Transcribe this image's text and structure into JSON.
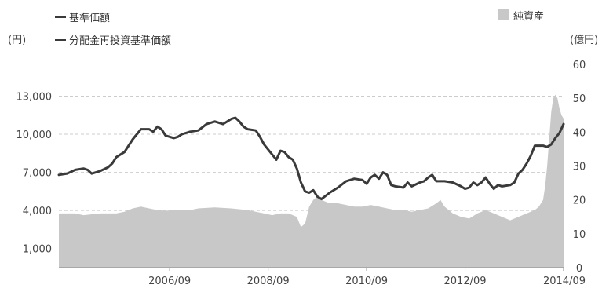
{
  "chart_data": {
    "type": "line+area",
    "legend": {
      "line1": "基準価額",
      "line2": "分配金再投資基準価額",
      "area": "純資産"
    },
    "left_axis": {
      "unit": "(円)",
      "ticks": [
        "1,000",
        "4,000",
        "7,000",
        "10,000",
        "13,000"
      ],
      "tick_values": [
        1000,
        4000,
        7000,
        10000,
        13000
      ],
      "range": [
        -500,
        15500
      ]
    },
    "right_axis": {
      "unit": "(億円)",
      "ticks": [
        "0",
        "10",
        "20",
        "30",
        "40",
        "50",
        "60"
      ],
      "tick_values": [
        0,
        10,
        20,
        30,
        40,
        50,
        60
      ],
      "range": [
        0,
        60
      ]
    },
    "x_axis": {
      "ticks": [
        "2006/09",
        "2008/09",
        "2010/09",
        "2012/09",
        "2014/09"
      ],
      "tick_t": [
        27,
        51,
        75,
        99,
        123
      ],
      "t_range": [
        0,
        123
      ],
      "t_unit": "months since 2004/06"
    },
    "grid": "dashed horizontal",
    "colors": {
      "line": "#3a3a3a",
      "area": "#c8c8c8"
    },
    "series": [
      {
        "name": "基準価額",
        "axis": "left",
        "points": [
          [
            0,
            6800
          ],
          [
            2,
            6900
          ],
          [
            4,
            7200
          ],
          [
            6,
            7300
          ],
          [
            7,
            7200
          ],
          [
            8,
            6900
          ],
          [
            10,
            7100
          ],
          [
            12,
            7400
          ],
          [
            13,
            7700
          ],
          [
            14,
            8200
          ],
          [
            16,
            8600
          ],
          [
            18,
            9600
          ],
          [
            20,
            10400
          ],
          [
            22,
            10400
          ],
          [
            23,
            10200
          ],
          [
            24,
            10600
          ],
          [
            25,
            10400
          ],
          [
            26,
            9900
          ],
          [
            28,
            9700
          ],
          [
            29,
            9800
          ],
          [
            30,
            10000
          ],
          [
            32,
            10200
          ],
          [
            34,
            10300
          ],
          [
            36,
            10800
          ],
          [
            38,
            11000
          ],
          [
            40,
            10800
          ],
          [
            42,
            11200
          ],
          [
            43,
            11300
          ],
          [
            44,
            11000
          ],
          [
            45,
            10600
          ],
          [
            46,
            10400
          ],
          [
            48,
            10300
          ],
          [
            49,
            9800
          ],
          [
            50,
            9200
          ],
          [
            51,
            8800
          ],
          [
            52,
            8400
          ],
          [
            53,
            8000
          ],
          [
            54,
            8700
          ],
          [
            55,
            8600
          ],
          [
            56,
            8200
          ],
          [
            57,
            8000
          ],
          [
            58,
            7300
          ],
          [
            59,
            6200
          ],
          [
            60,
            5500
          ],
          [
            61,
            5400
          ],
          [
            62,
            5600
          ],
          [
            63,
            5100
          ],
          [
            64,
            4900
          ],
          [
            66,
            5400
          ],
          [
            68,
            5800
          ],
          [
            70,
            6300
          ],
          [
            72,
            6500
          ],
          [
            74,
            6400
          ],
          [
            75,
            6100
          ],
          [
            76,
            6600
          ],
          [
            77,
            6800
          ],
          [
            78,
            6500
          ],
          [
            79,
            7000
          ],
          [
            80,
            6800
          ],
          [
            81,
            6000
          ],
          [
            82,
            5900
          ],
          [
            84,
            5800
          ],
          [
            85,
            6200
          ],
          [
            86,
            5900
          ],
          [
            88,
            6200
          ],
          [
            89,
            6300
          ],
          [
            90,
            6600
          ],
          [
            91,
            6800
          ],
          [
            92,
            6300
          ],
          [
            94,
            6300
          ],
          [
            96,
            6200
          ],
          [
            98,
            5900
          ],
          [
            99,
            5700
          ],
          [
            100,
            5800
          ],
          [
            101,
            6200
          ],
          [
            102,
            6000
          ],
          [
            103,
            6200
          ],
          [
            104,
            6600
          ],
          [
            105,
            6100
          ],
          [
            106,
            5700
          ],
          [
            107,
            6000
          ],
          [
            108,
            5900
          ],
          [
            110,
            6000
          ],
          [
            111,
            6200
          ],
          [
            112,
            6900
          ],
          [
            113,
            7200
          ],
          [
            114,
            7700
          ],
          [
            115,
            8300
          ],
          [
            116,
            9100
          ],
          [
            118,
            9100
          ],
          [
            119,
            9000
          ],
          [
            120,
            9200
          ],
          [
            121,
            9700
          ],
          [
            122,
            10100
          ],
          [
            123,
            10800
          ]
        ]
      },
      {
        "name": "純資産",
        "axis": "right",
        "points": [
          [
            0,
            16
          ],
          [
            4,
            16
          ],
          [
            6,
            15.5
          ],
          [
            10,
            16
          ],
          [
            14,
            16
          ],
          [
            16,
            16.5
          ],
          [
            18,
            17.5
          ],
          [
            20,
            18
          ],
          [
            22,
            17.5
          ],
          [
            24,
            17
          ],
          [
            26,
            16.8
          ],
          [
            28,
            17
          ],
          [
            32,
            17
          ],
          [
            34,
            17.5
          ],
          [
            38,
            17.8
          ],
          [
            42,
            17.5
          ],
          [
            46,
            17
          ],
          [
            48,
            16.5
          ],
          [
            50,
            16
          ],
          [
            52,
            15.5
          ],
          [
            54,
            16
          ],
          [
            56,
            16
          ],
          [
            58,
            15
          ],
          [
            59,
            12
          ],
          [
            60,
            13
          ],
          [
            61,
            18
          ],
          [
            62,
            20
          ],
          [
            63,
            21
          ],
          [
            64,
            20
          ],
          [
            66,
            19
          ],
          [
            68,
            19
          ],
          [
            70,
            18.5
          ],
          [
            72,
            18
          ],
          [
            74,
            18
          ],
          [
            76,
            18.5
          ],
          [
            78,
            18
          ],
          [
            80,
            17.5
          ],
          [
            82,
            17
          ],
          [
            84,
            17
          ],
          [
            86,
            16.5
          ],
          [
            88,
            17
          ],
          [
            90,
            17.5
          ],
          [
            92,
            19
          ],
          [
            93,
            20
          ],
          [
            94,
            18
          ],
          [
            96,
            16
          ],
          [
            98,
            15
          ],
          [
            100,
            14.5
          ],
          [
            102,
            16
          ],
          [
            104,
            17
          ],
          [
            106,
            16
          ],
          [
            108,
            15
          ],
          [
            110,
            14
          ],
          [
            112,
            15
          ],
          [
            114,
            16
          ],
          [
            116,
            17
          ],
          [
            117,
            18
          ],
          [
            118,
            20
          ],
          [
            118.5,
            24
          ],
          [
            119,
            30
          ],
          [
            119.5,
            38
          ],
          [
            120,
            46
          ],
          [
            120.5,
            50
          ],
          [
            121,
            51
          ],
          [
            121.5,
            50
          ],
          [
            122,
            47
          ],
          [
            122.5,
            45
          ],
          [
            123,
            44
          ],
          [
            123,
            44
          ]
        ]
      }
    ]
  }
}
